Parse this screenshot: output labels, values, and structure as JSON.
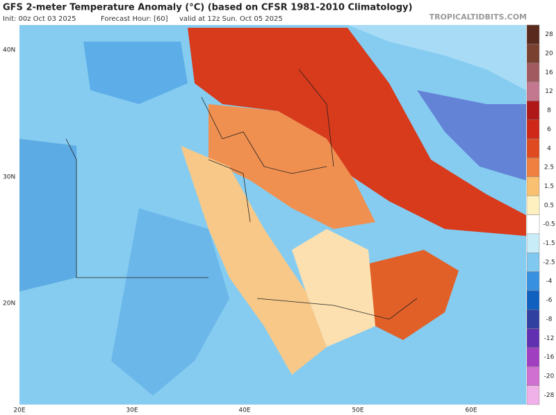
{
  "header": {
    "title": "GFS 2-meter Temperature Anomaly (°C) (based on CFSR 1981-2010 Climatology)",
    "init": "Init: 00z Oct 03 2025",
    "forecast_hour": "Forecast Hour: [60]",
    "valid": "valid at 12z Sun. Oct 05 2025",
    "watermark": "TROPICALTIDBITS.COM"
  },
  "map": {
    "lat_labels": [
      "40N",
      "30N",
      "20N"
    ],
    "lon_labels": [
      "20E",
      "30E",
      "40E",
      "50E",
      "60E"
    ]
  },
  "colorbar": {
    "levels": [
      {
        "label": "28",
        "color": "#5a2a1e"
      },
      {
        "label": "20",
        "color": "#7a4030"
      },
      {
        "label": "16",
        "color": "#a05a60"
      },
      {
        "label": "12",
        "color": "#c47890"
      },
      {
        "label": "8",
        "color": "#b01818"
      },
      {
        "label": "6",
        "color": "#d02818"
      },
      {
        "label": "4",
        "color": "#e04a20"
      },
      {
        "label": "2.5",
        "color": "#f08040"
      },
      {
        "label": "1.5",
        "color": "#f8c070"
      },
      {
        "label": "0.5",
        "color": "#fff0c0"
      },
      {
        "label": "-0.5",
        "color": "#ffffff"
      },
      {
        "label": "-1.5",
        "color": "#c8ecf8"
      },
      {
        "label": "-2.5",
        "color": "#80c8f0"
      },
      {
        "label": "-4",
        "color": "#3890e0"
      },
      {
        "label": "-6",
        "color": "#1060c0"
      },
      {
        "label": "-8",
        "color": "#3040a0"
      },
      {
        "label": "-12",
        "color": "#6030b0"
      },
      {
        "label": "-16",
        "color": "#a040c0"
      },
      {
        "label": "-20",
        "color": "#d070d0"
      },
      {
        "label": "-28",
        "color": "#f0b0e8"
      }
    ]
  }
}
